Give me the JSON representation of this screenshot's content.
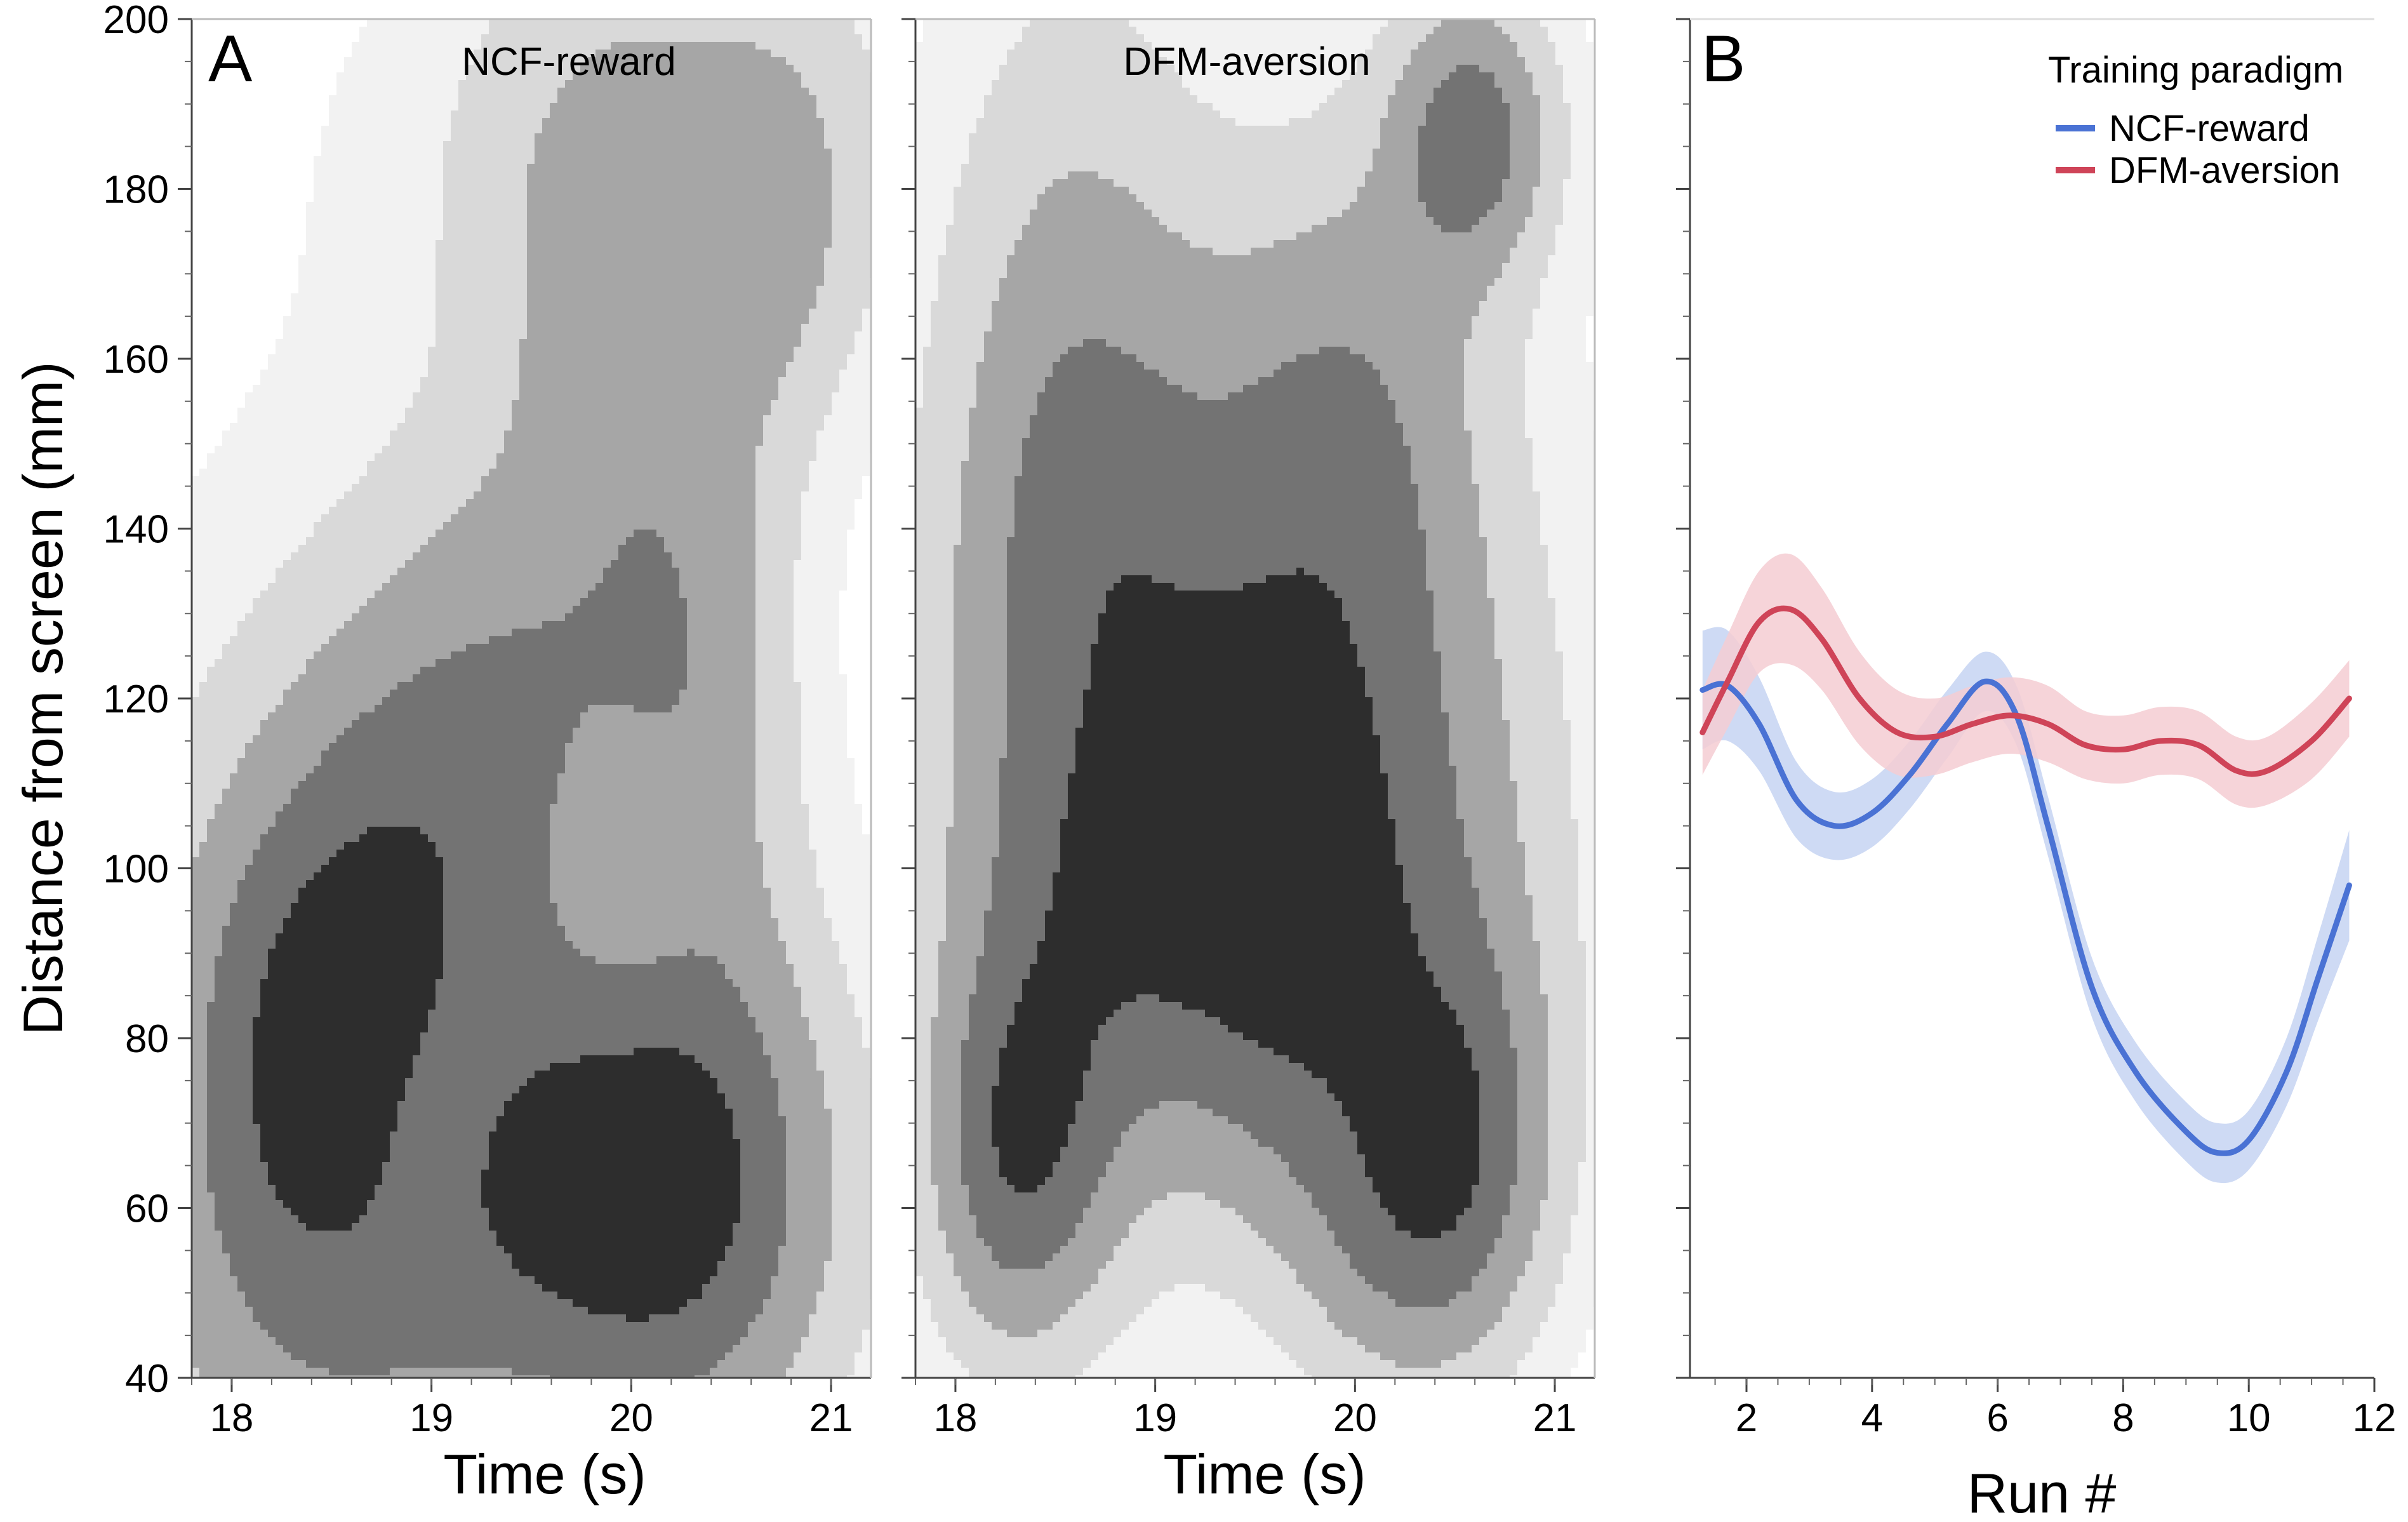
{
  "figure": {
    "panelA": {
      "letter": "A",
      "ylabel": "Distance from screen (mm)",
      "xlabel": "Time (s)",
      "left_title": "NCF-reward",
      "right_title": "DFM-aversion"
    },
    "panelB": {
      "letter": "B",
      "xlabel": "Run #",
      "legend_title": "Training paradigm"
    }
  },
  "chart_data": [
    {
      "type": "heatmap",
      "id": "A-left",
      "title": "NCF-reward",
      "xlabel": "Time (s)",
      "ylabel": "Distance from screen (mm)",
      "xlim": [
        17.8,
        21.2
      ],
      "ylim": [
        40,
        200
      ],
      "xticks": [
        18,
        19,
        20,
        21
      ],
      "yticks": [
        40,
        60,
        80,
        100,
        120,
        140,
        160,
        180,
        200
      ],
      "density_levels": [
        "#f2f2f2",
        "#d9d9d9",
        "#a6a6a6",
        "#737373",
        "#2d2d2d"
      ],
      "blobs": [
        {
          "t": 18.25,
          "d": 60,
          "w": 0.75,
          "h": 52,
          "a": 0.6
        },
        {
          "t": 20.2,
          "d": 185,
          "w": 1.0,
          "h": 22,
          "a": 0.55
        },
        {
          "t": 19.0,
          "d": 105,
          "w": 0.5,
          "h": 25,
          "a": 0.6
        },
        {
          "t": 19.55,
          "d": 60,
          "w": 0.95,
          "h": 22,
          "a": 1.0
        },
        {
          "t": 20.35,
          "d": 65,
          "w": 0.55,
          "h": 28,
          "a": 0.7
        },
        {
          "t": 18.35,
          "d": 84,
          "w": 0.45,
          "h": 22,
          "a": 0.55
        },
        {
          "t": 19.5,
          "d": 125,
          "w": 0.55,
          "h": 22,
          "a": 0.35
        },
        {
          "t": 19.9,
          "d": 150,
          "w": 0.45,
          "h": 35,
          "a": 0.45
        },
        {
          "t": 20.4,
          "d": 125,
          "w": 0.35,
          "h": 25,
          "a": 0.5
        },
        {
          "t": 20.75,
          "d": 175,
          "w": 0.3,
          "h": 18,
          "a": 0.35
        },
        {
          "t": 18.9,
          "d": 70,
          "w": 0.4,
          "h": 15,
          "a": -0.35
        },
        {
          "t": 20.0,
          "d": 95,
          "w": 0.3,
          "h": 12,
          "a": -0.2
        }
      ]
    },
    {
      "type": "heatmap",
      "id": "A-right",
      "title": "DFM-aversion",
      "xlabel": "Time (s)",
      "xlim": [
        17.8,
        21.2
      ],
      "ylim": [
        40,
        200
      ],
      "xticks": [
        18,
        19,
        20,
        21
      ],
      "density_levels": [
        "#f2f2f2",
        "#d9d9d9",
        "#a6a6a6",
        "#737373",
        "#2d2d2d"
      ],
      "blobs": [
        {
          "t": 18.6,
          "d": 140,
          "w": 0.55,
          "h": 45,
          "a": 0.9
        },
        {
          "t": 19.5,
          "d": 105,
          "w": 0.9,
          "h": 28,
          "a": 1.0
        },
        {
          "t": 18.3,
          "d": 65,
          "w": 0.35,
          "h": 18,
          "a": 0.9
        },
        {
          "t": 20.6,
          "d": 187,
          "w": 0.3,
          "h": 12,
          "a": 0.9
        },
        {
          "t": 19.9,
          "d": 155,
          "w": 0.5,
          "h": 22,
          "a": 0.55
        },
        {
          "t": 20.6,
          "d": 68,
          "w": 0.35,
          "h": 18,
          "a": 0.65
        },
        {
          "t": 20.2,
          "d": 55,
          "w": 0.4,
          "h": 15,
          "a": 0.5
        },
        {
          "t": 19.7,
          "d": 80,
          "w": 0.5,
          "h": 20,
          "a": 0.35
        },
        {
          "t": 20.3,
          "d": 130,
          "w": 0.6,
          "h": 50,
          "a": 0.3
        },
        {
          "t": 18.7,
          "d": 120,
          "w": 0.4,
          "h": 15,
          "a": -0.2
        }
      ]
    },
    {
      "type": "line",
      "id": "B",
      "xlabel": "Run #",
      "ylabel": "Distance from screen (mm)",
      "xlim": [
        1.1,
        12
      ],
      "ylim": [
        40,
        200
      ],
      "xticks": [
        2,
        4,
        6,
        8,
        10,
        12
      ],
      "legend_title": "Training paradigm",
      "legend_position": "top-right",
      "series": [
        {
          "name": "NCF-reward",
          "color": "#4a72d4",
          "band_color": "#c5d3f2",
          "x": [
            1.3,
            1.7,
            2.2,
            2.8,
            3.4,
            4.0,
            4.6,
            5.2,
            5.8,
            6.3,
            6.8,
            7.5,
            8.2,
            9.0,
            9.5,
            10.0,
            10.6,
            11.1,
            11.6
          ],
          "y": [
            121,
            121.5,
            117,
            108,
            105,
            106.5,
            111,
            117,
            122,
            118,
            105,
            86,
            76,
            69,
            66.5,
            68,
            76,
            87,
            98
          ],
          "band": [
            7,
            6.5,
            5.5,
            4.5,
            4,
            4,
            4,
            4,
            3.5,
            3.5,
            3.5,
            3.5,
            3.5,
            3.5,
            3.5,
            3.5,
            4,
            5,
            6.5
          ]
        },
        {
          "name": "DFM-aversion",
          "color": "#cf4458",
          "band_color": "#f4cdd2",
          "x": [
            1.3,
            1.7,
            2.2,
            2.7,
            3.2,
            3.8,
            4.4,
            5.0,
            5.6,
            6.2,
            6.8,
            7.4,
            8.0,
            8.6,
            9.2,
            9.8,
            10.3,
            11.0,
            11.6
          ],
          "y": [
            116,
            122,
            129,
            130.5,
            127,
            120,
            116,
            115.5,
            117,
            118,
            117,
            114.5,
            114,
            115,
            114.5,
            111.5,
            111.5,
            115,
            120
          ],
          "band": [
            5,
            5.5,
            6,
            6.5,
            6,
            5.5,
            5,
            4.5,
            4.5,
            4.5,
            4.5,
            4,
            4,
            4,
            4,
            4,
            4,
            4.5,
            4.5
          ]
        }
      ]
    }
  ]
}
